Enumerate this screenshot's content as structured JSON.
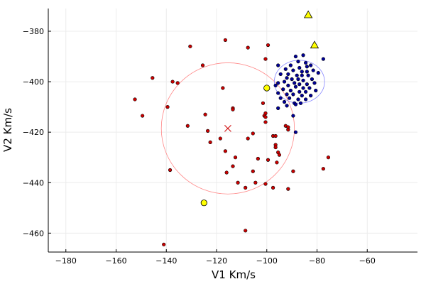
{
  "chart_data": {
    "type": "scatter",
    "title": "",
    "xlabel": "V1 Km/s",
    "ylabel": "V2 Km/s",
    "xlim": [
      -187,
      -40
    ],
    "ylim": [
      -467.5,
      -371
    ],
    "xticks": [
      -180,
      -160,
      -140,
      -120,
      -100,
      -80,
      -60
    ],
    "yticks": [
      -460,
      -440,
      -420,
      -400,
      -380
    ],
    "grid": true,
    "legend": "none",
    "colors": {
      "red": "#cc0000",
      "blue": "#000099",
      "yellow": "#ffff00",
      "marker_edge": "#000000",
      "circle_red": "#ff8888",
      "circle_blue": "#8888ff",
      "grid": "#ececec"
    },
    "series": [
      {
        "marker": "circle-small",
        "color": "red",
        "points": [
          [
            -116.5,
            -383.5
          ],
          [
            -107.5,
            -386.5
          ],
          [
            -130.5,
            -386
          ],
          [
            -99.5,
            -385.5
          ],
          [
            -100.5,
            -391
          ],
          [
            -125.5,
            -393.5
          ],
          [
            -145.5,
            -398.5
          ],
          [
            -137.5,
            -400
          ],
          [
            -135.5,
            -400.5
          ],
          [
            -117.5,
            -402.5
          ],
          [
            -152.5,
            -407
          ],
          [
            -139.5,
            -410
          ],
          [
            -113.5,
            -410.5
          ],
          [
            -113.5,
            -411
          ],
          [
            -149.5,
            -413.5
          ],
          [
            -124.5,
            -413
          ],
          [
            -101.5,
            -408.5
          ],
          [
            -100.5,
            -412.5
          ],
          [
            -101,
            -413.5
          ],
          [
            -100.5,
            -414
          ],
          [
            -100.5,
            -416
          ],
          [
            -131.5,
            -417.5
          ],
          [
            -92.5,
            -417.5
          ],
          [
            -91.5,
            -418
          ],
          [
            -91.5,
            -419
          ],
          [
            -123.5,
            -419.5
          ],
          [
            -105.5,
            -420.5
          ],
          [
            -97.5,
            -421.5
          ],
          [
            -96.5,
            -421.5
          ],
          [
            -107.5,
            -422.5
          ],
          [
            -118.5,
            -422.5
          ],
          [
            -122.5,
            -424
          ],
          [
            -96.5,
            -425
          ],
          [
            -96.5,
            -426
          ],
          [
            -116.5,
            -427.5
          ],
          [
            -95.5,
            -428
          ],
          [
            -95,
            -429
          ],
          [
            -112.5,
            -430
          ],
          [
            -75.5,
            -430
          ],
          [
            -103.5,
            -430.5
          ],
          [
            -99.5,
            -431
          ],
          [
            -96,
            -432
          ],
          [
            -113.5,
            -433.5
          ],
          [
            -77.5,
            -434.5
          ],
          [
            -138.5,
            -435
          ],
          [
            -116,
            -436
          ],
          [
            -105.5,
            -435.5
          ],
          [
            -89.5,
            -435.5
          ],
          [
            -111.5,
            -440
          ],
          [
            -104.5,
            -440
          ],
          [
            -100.5,
            -440.5
          ],
          [
            -108.5,
            -442
          ],
          [
            -97.5,
            -442
          ],
          [
            -91.5,
            -442.5
          ],
          [
            -108.5,
            -459
          ],
          [
            -141,
            -464.5
          ]
        ]
      },
      {
        "marker": "circle-small",
        "color": "blue",
        "points": [
          [
            -88.5,
            -390
          ],
          [
            -85.5,
            -389.5
          ],
          [
            -87.5,
            -392
          ],
          [
            -84.5,
            -392.5
          ],
          [
            -77.5,
            -391
          ],
          [
            -95.5,
            -393.5
          ],
          [
            -90.5,
            -393.5
          ],
          [
            -87,
            -394.5
          ],
          [
            -84,
            -394
          ],
          [
            -82.5,
            -393.5
          ],
          [
            -92.5,
            -395
          ],
          [
            -89.5,
            -395.5
          ],
          [
            -86,
            -396
          ],
          [
            -84,
            -396
          ],
          [
            -81.5,
            -395.5
          ],
          [
            -94.5,
            -397
          ],
          [
            -91.5,
            -397
          ],
          [
            -88,
            -397.5
          ],
          [
            -86,
            -397.5
          ],
          [
            -83.5,
            -397.5
          ],
          [
            -79.5,
            -396.5
          ],
          [
            -92,
            -398.5
          ],
          [
            -90,
            -399
          ],
          [
            -87.5,
            -399
          ],
          [
            -85.5,
            -399.5
          ],
          [
            -82,
            -399
          ],
          [
            -95.5,
            -400.5
          ],
          [
            -93,
            -400
          ],
          [
            -89,
            -400.5
          ],
          [
            -87,
            -401
          ],
          [
            -84,
            -401
          ],
          [
            -81,
            -400.5
          ],
          [
            -96.5,
            -401.5
          ],
          [
            -91.5,
            -401.5
          ],
          [
            -88.5,
            -402
          ],
          [
            -85.5,
            -402.5
          ],
          [
            -83,
            -402.5
          ],
          [
            -93.5,
            -403
          ],
          [
            -90.5,
            -403.5
          ],
          [
            -87,
            -404
          ],
          [
            -84.5,
            -404
          ],
          [
            -80.5,
            -403.5
          ],
          [
            -95.5,
            -404.5
          ],
          [
            -92,
            -405
          ],
          [
            -89.5,
            -405
          ],
          [
            -86,
            -405.5
          ],
          [
            -82.5,
            -405.5
          ],
          [
            -94.5,
            -406.5
          ],
          [
            -91,
            -406.5
          ],
          [
            -87.5,
            -407
          ],
          [
            -84.5,
            -407
          ],
          [
            -93,
            -408
          ],
          [
            -89,
            -408.5
          ],
          [
            -86.5,
            -408.5
          ],
          [
            -92,
            -409.5
          ],
          [
            -88.5,
            -409
          ],
          [
            -95.5,
            -410.5
          ],
          [
            -89.5,
            -413.5
          ],
          [
            -88.5,
            -420
          ]
        ]
      },
      {
        "marker": "circle-large",
        "color": "yellow",
        "points": [
          [
            -100,
            -402.5
          ],
          [
            -125,
            -448
          ]
        ]
      },
      {
        "marker": "triangle",
        "color": "yellow",
        "points": [
          [
            -83.5,
            -373.5
          ],
          [
            -81,
            -385.5
          ]
        ]
      },
      {
        "marker": "x",
        "color": "red",
        "points": [
          [
            -115.5,
            -418.5
          ]
        ]
      }
    ],
    "circles": [
      {
        "center": [
          -115.5,
          -418.5
        ],
        "radius_x": 26.5,
        "radius_y": 26,
        "color": "circle_red"
      },
      {
        "center": [
          -87,
          -400
        ],
        "radius_x": 10,
        "radius_y": 8.5,
        "color": "circle_blue"
      }
    ]
  }
}
